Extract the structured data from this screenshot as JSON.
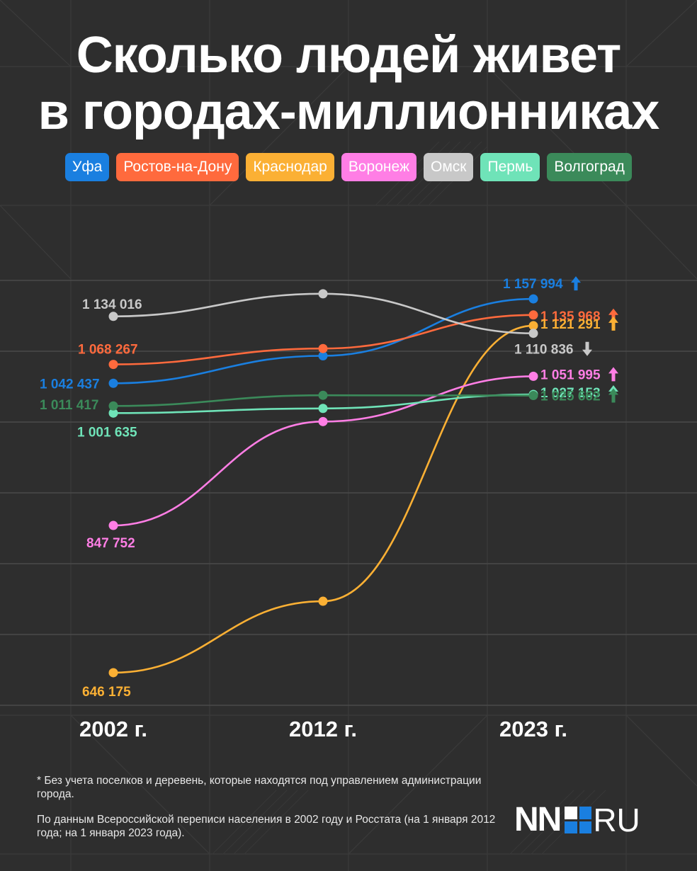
{
  "title_line1": "Сколько людей живет",
  "title_line2": "в городах-миллионниках",
  "chart_data": {
    "type": "line",
    "x": [
      "2002 г.",
      "2012 г.",
      "2023 г."
    ],
    "series": [
      {
        "name": "Уфа",
        "color": "#1a7fe0",
        "values": [
          1042437,
          1080000,
          1157994
        ],
        "labels": [
          "1 042 437",
          "",
          "1 157 994"
        ],
        "trend": "up"
      },
      {
        "name": "Ростов-на-Дону",
        "color": "#ff6a3d",
        "values": [
          1068267,
          1090000,
          1135968
        ],
        "labels": [
          "1 068 267",
          "",
          "1 135 968"
        ],
        "trend": "up"
      },
      {
        "name": "Краснодар",
        "color": "#fbb034",
        "values": [
          646175,
          744000,
          1121291
        ],
        "labels": [
          "646 175",
          "",
          "1 121 291"
        ],
        "trend": "up"
      },
      {
        "name": "Воронеж",
        "color": "#ff7ee5",
        "values": [
          847752,
          990000,
          1051995
        ],
        "labels": [
          "847 752",
          "",
          "1 051 995"
        ],
        "trend": "up"
      },
      {
        "name": "Омск",
        "color": "#c8c8c8",
        "values": [
          1134016,
          1165000,
          1110836
        ],
        "labels": [
          "1 134 016",
          "",
          "1 110 836"
        ],
        "trend": "down"
      },
      {
        "name": "Пермь",
        "color": "#6fe3b8",
        "values": [
          1001635,
          1008000,
          1027153
        ],
        "labels": [
          "1 001 635",
          "",
          "1 027 153"
        ],
        "trend": "up"
      },
      {
        "name": "Волгоград",
        "color": "#3b8a5a",
        "values": [
          1011417,
          1026000,
          1025662
        ],
        "labels": [
          "1 011 417",
          "",
          "1 025 662"
        ],
        "trend": "up"
      }
    ],
    "grid": true
  },
  "footnote": "* Без учета поселков и деревень, которые находятся под управлением администрации города.",
  "source": "По данным Всероссийской переписи населения в 2002 году и Росстата (на 1 января 2012 года; на 1 января 2023 года).",
  "logo": {
    "left": "NN",
    "right": "RU",
    "square_colors": [
      "#ffffff",
      "#1a7fe0",
      "#1a7fe0",
      "#1a7fe0"
    ]
  }
}
